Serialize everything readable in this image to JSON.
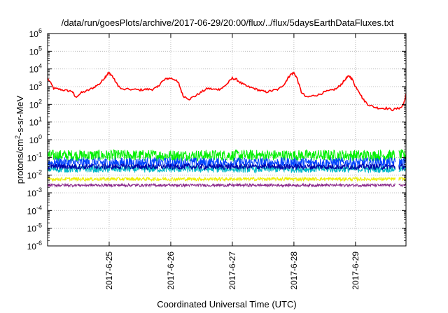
{
  "chart_data": {
    "type": "line",
    "title": "/data/run/goesPlots/archive/2017-06-29/20:00/flux/../flux/5daysEarthDataFluxes.txt",
    "xlabel": "Coordinated Universal Time (UTC)",
    "ylabel_parts": [
      "protons/cm",
      "2",
      "-s-sr-MeV"
    ],
    "y_scale": "log",
    "ylim": [
      1e-06,
      1000000.0
    ],
    "y_tick_exponents": [
      -6,
      -5,
      -4,
      -3,
      -2,
      -1,
      0,
      1,
      2,
      3,
      4,
      5,
      6
    ],
    "y_tick_base": "10",
    "xlim_days": [
      0,
      5.82
    ],
    "x_ticks": [
      {
        "day": 1,
        "label": "2017-6-25"
      },
      {
        "day": 2,
        "label": "2017-6-26"
      },
      {
        "day": 3,
        "label": "2017-6-27"
      },
      {
        "day": 4,
        "label": "2017-6-28"
      },
      {
        "day": 5,
        "label": "2017-6-29"
      }
    ],
    "grid": true,
    "series": [
      {
        "color": "#ff0000",
        "x": [
          0,
          0.1,
          0.2,
          0.3,
          0.4,
          0.45,
          0.55,
          0.65,
          0.75,
          0.85,
          0.92,
          0.97,
          1.0,
          1.05,
          1.12,
          1.2,
          1.35,
          1.5,
          1.6,
          1.7,
          1.78,
          1.85,
          1.93,
          2.0,
          2.07,
          2.13,
          2.2,
          2.3,
          2.4,
          2.5,
          2.6,
          2.7,
          2.78,
          2.85,
          2.92,
          3.0,
          3.07,
          3.15,
          3.25,
          3.35,
          3.45,
          3.55,
          3.65,
          3.75,
          3.85,
          3.9,
          3.95,
          4.0,
          4.05,
          4.12,
          4.2,
          4.3,
          4.4,
          4.5,
          4.6,
          4.7,
          4.78,
          4.85,
          4.9,
          4.95,
          5.0,
          5.05,
          5.12,
          5.2,
          5.3,
          5.4,
          5.5,
          5.6,
          5.7,
          5.75,
          5.8,
          5.82
        ],
        "y": [
          3000,
          800,
          700,
          600,
          550,
          250,
          450,
          600,
          900,
          1500,
          3000,
          5000,
          6000,
          4000,
          1500,
          700,
          700,
          650,
          700,
          700,
          900,
          1800,
          2800,
          3000,
          2500,
          1500,
          300,
          200,
          300,
          500,
          800,
          700,
          700,
          900,
          1500,
          3000,
          2500,
          1500,
          1000,
          800,
          600,
          500,
          600,
          700,
          1500,
          3000,
          5000,
          6000,
          3000,
          500,
          250,
          300,
          350,
          500,
          600,
          800,
          1500,
          3000,
          4000,
          2500,
          1000,
          600,
          200,
          100,
          70,
          60,
          60,
          50,
          60,
          70,
          150,
          400
        ]
      },
      {
        "color": "#00ee00",
        "level": 0.13,
        "noise_decades": 0.32
      },
      {
        "color": "#0044ff",
        "level": 0.05,
        "noise_decades": 0.3
      },
      {
        "color": "#00b8c8",
        "level": 0.022,
        "noise_decades": 0.2
      },
      {
        "color": "#0000aa",
        "level": 0.03,
        "noise_decades": 0.16
      },
      {
        "color": "#eeee00",
        "level": 0.006,
        "noise_decades": 0.1
      },
      {
        "color": "#8b2a8b",
        "level": 0.0027,
        "noise_decades": 0.08
      }
    ],
    "data_gap_days": [
      5.65,
      5.7
    ]
  }
}
